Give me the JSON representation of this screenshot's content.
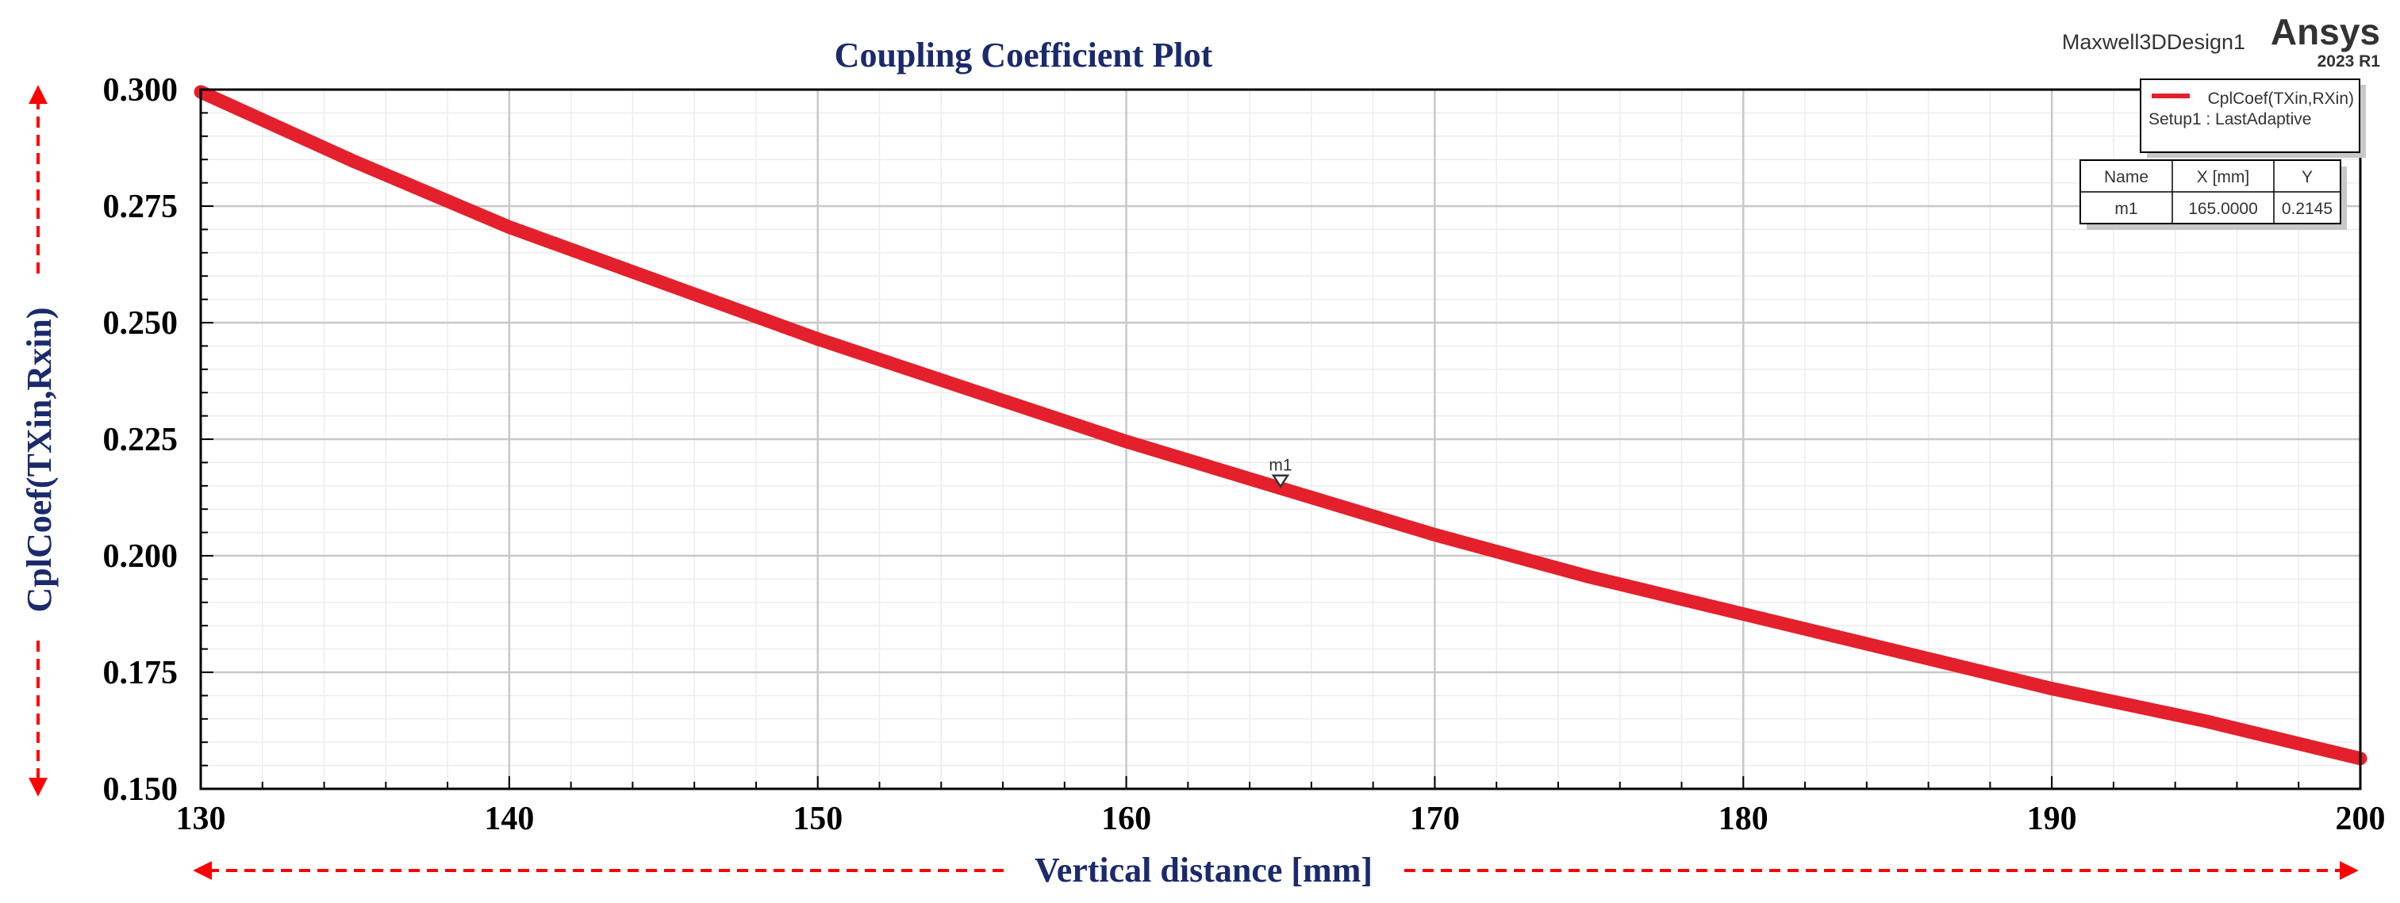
{
  "header": {
    "design_name": "Maxwell3DDesign1",
    "brand": "Ansys",
    "version": "2023 R1"
  },
  "legend": {
    "series_label": "CplCoef(TXin,RXin)",
    "setup_label": "Setup1 : LastAdaptive"
  },
  "marker_table": {
    "headers": [
      "Name",
      "X [mm]",
      "Y"
    ],
    "rows": [
      [
        "m1",
        "165.0000",
        "0.2145"
      ]
    ]
  },
  "colors": {
    "series": "#e3202b",
    "title": "#1a2a6c",
    "arrow": "#ff0000"
  },
  "chart_data": {
    "type": "line",
    "title": "Coupling Coefficient Plot",
    "xlabel": "Vertical distance [mm]",
    "ylabel": "CplCoef(TXin,Rxin)",
    "xlim": [
      130,
      200
    ],
    "ylim": [
      0.15,
      0.3
    ],
    "x_ticks": [
      "130",
      "140",
      "150",
      "160",
      "170",
      "180",
      "190",
      "200"
    ],
    "y_ticks": [
      "0.300",
      "0.275",
      "0.250",
      "0.225",
      "0.200",
      "0.175",
      "0.150"
    ],
    "grid": true,
    "legend_position": "top-right",
    "series": [
      {
        "name": "CplCoef(TXin,RXin)",
        "x": [
          130,
          135,
          140,
          145,
          150,
          155,
          160,
          165,
          170,
          175,
          180,
          185,
          190,
          195,
          200
        ],
        "y": [
          0.2995,
          0.2845,
          0.2705,
          0.2585,
          0.2465,
          0.2355,
          0.2245,
          0.2145,
          0.2045,
          0.1955,
          0.1875,
          0.1795,
          0.1715,
          0.1645,
          0.1565
        ]
      }
    ],
    "markers": [
      {
        "label": "m1",
        "x": 165,
        "y": 0.2145
      }
    ]
  }
}
